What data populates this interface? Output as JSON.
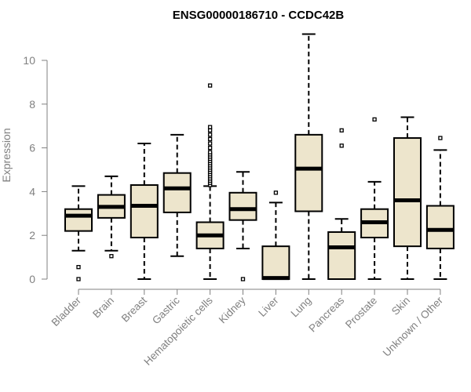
{
  "chart_data": {
    "type": "box",
    "title": "ENSG00000186710 - CCDC42B",
    "ylabel": "Expression",
    "xlabel": "",
    "ylim": [
      0,
      11.2
    ],
    "yticks": [
      0,
      2,
      4,
      6,
      8,
      10
    ],
    "grid": false,
    "box_fill": "#ede5cc",
    "line_color": "#000000",
    "categories": [
      "Bladder",
      "Brain",
      "Breast",
      "Gastric",
      "Hematopoietic cells",
      "Kidney",
      "Liver",
      "Lung",
      "Pancreas",
      "Prostate",
      "Skin",
      "Unknown / Other"
    ],
    "boxes": [
      {
        "whisker_low": 1.3,
        "q1": 2.2,
        "median": 2.9,
        "q3": 3.2,
        "whisker_high": 4.25,
        "outliers": [
          0.0,
          0.55
        ]
      },
      {
        "whisker_low": 1.3,
        "q1": 2.8,
        "median": 3.3,
        "q3": 3.85,
        "whisker_high": 4.7,
        "outliers": [
          1.05
        ]
      },
      {
        "whisker_low": 0.0,
        "q1": 1.9,
        "median": 3.35,
        "q3": 4.3,
        "whisker_high": 6.2,
        "outliers": []
      },
      {
        "whisker_low": 1.05,
        "q1": 3.05,
        "median": 4.15,
        "q3": 4.85,
        "whisker_high": 6.6,
        "outliers": []
      },
      {
        "whisker_low": 0.0,
        "q1": 1.4,
        "median": 2.0,
        "q3": 2.6,
        "whisker_high": 4.25,
        "outliers": [
          4.3,
          4.4,
          4.5,
          4.6,
          4.7,
          4.8,
          4.9,
          5.0,
          5.1,
          5.2,
          5.3,
          5.4,
          5.5,
          5.6,
          5.7,
          5.8,
          6.0,
          6.2,
          6.4,
          6.6,
          6.8,
          6.95,
          8.85
        ]
      },
      {
        "whisker_low": 1.4,
        "q1": 2.7,
        "median": 3.2,
        "q3": 3.95,
        "whisker_high": 4.9,
        "outliers": [
          0.0
        ]
      },
      {
        "whisker_low": 0.0,
        "q1": 0.0,
        "median": 0.05,
        "q3": 1.5,
        "whisker_high": 3.5,
        "outliers": [
          3.95
        ]
      },
      {
        "whisker_low": 0.0,
        "q1": 3.1,
        "median": 5.05,
        "q3": 6.6,
        "whisker_high": 11.2,
        "outliers": []
      },
      {
        "whisker_low": 0.0,
        "q1": 0.0,
        "median": 1.45,
        "q3": 2.15,
        "whisker_high": 2.75,
        "outliers": [
          6.1,
          6.8
        ]
      },
      {
        "whisker_low": 0.0,
        "q1": 1.9,
        "median": 2.6,
        "q3": 3.2,
        "whisker_high": 4.45,
        "outliers": [
          7.3
        ]
      },
      {
        "whisker_low": 0.0,
        "q1": 1.5,
        "median": 3.6,
        "q3": 6.45,
        "whisker_high": 7.4,
        "outliers": []
      },
      {
        "whisker_low": 0.0,
        "q1": 1.4,
        "median": 2.25,
        "q3": 3.35,
        "whisker_high": 5.9,
        "outliers": [
          6.45
        ]
      }
    ]
  }
}
